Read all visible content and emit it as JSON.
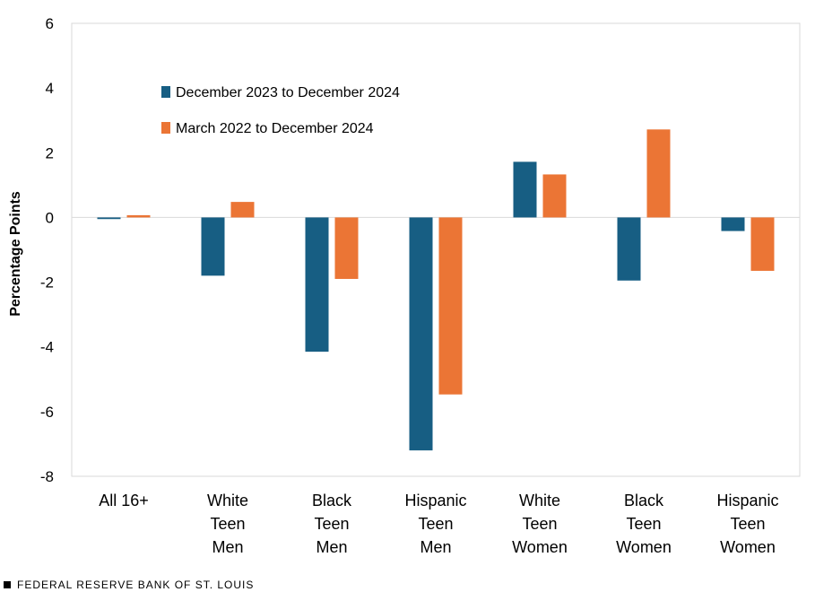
{
  "chart_data": {
    "type": "bar",
    "categories": [
      [
        "All 16+"
      ],
      [
        "White",
        "Teen",
        "Men"
      ],
      [
        "Black",
        "Teen",
        "Men"
      ],
      [
        "Hispanic",
        "Teen",
        "Men"
      ],
      [
        "White",
        "Teen",
        "Women"
      ],
      [
        "Black",
        "Teen",
        "Women"
      ],
      [
        "Hispanic",
        "Teen",
        "Women"
      ]
    ],
    "series": [
      {
        "name": "December 2023 to December 2024",
        "color": "#175e83",
        "values": [
          -0.05,
          -1.8,
          -4.15,
          -7.2,
          1.72,
          -1.95,
          -0.42
        ]
      },
      {
        "name": "March 2022 to December 2024",
        "color": "#eb7535",
        "values": [
          0.07,
          0.48,
          -1.9,
          -5.47,
          1.33,
          2.72,
          -1.65
        ]
      }
    ],
    "ylabel": "Percentage Points",
    "ylim": [
      -8,
      6
    ],
    "yticks": [
      6,
      4,
      2,
      0,
      -2,
      -4,
      -6,
      -8
    ],
    "legend_position": "top-left",
    "grid": false
  },
  "footer": {
    "source": "FEDERAL RESERVE BANK OF ST. LOUIS"
  }
}
